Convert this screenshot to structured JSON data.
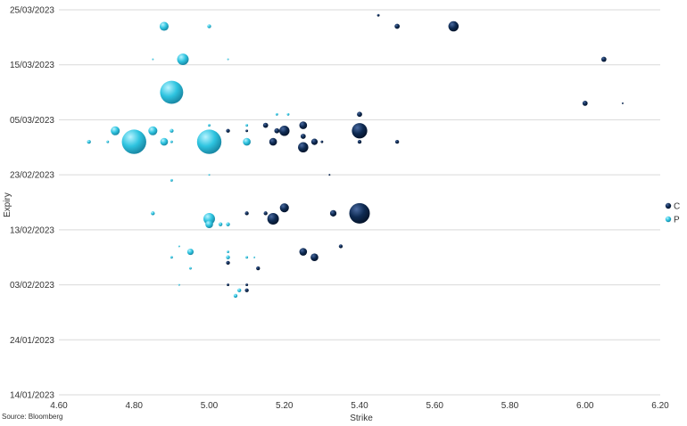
{
  "chart_data": {
    "type": "bubble",
    "xlabel": "Strike",
    "ylabel": "Expiry",
    "xlim": [
      4.6,
      6.2
    ],
    "x_ticks": [
      "4.60",
      "4.80",
      "5.00",
      "5.20",
      "5.40",
      "5.60",
      "5.80",
      "6.00",
      "6.20"
    ],
    "y_ticks": [
      "14/01/2023",
      "24/01/2023",
      "03/02/2023",
      "13/02/2023",
      "23/02/2023",
      "05/03/2023",
      "15/03/2023",
      "25/03/2023"
    ],
    "y_tick_dates": [
      "2023-01-14",
      "2023-01-24",
      "2023-02-03",
      "2023-02-13",
      "2023-02-23",
      "2023-03-05",
      "2023-03-15",
      "2023-03-25"
    ],
    "grid": "horizontal",
    "legend_position": "right",
    "colors": {
      "C": "#0e2a52",
      "P": "#2ec4e0"
    },
    "series": [
      {
        "name": "C",
        "color": "#0e2a52",
        "points": [
          {
            "x": 5.45,
            "y": "2023-03-24",
            "size": 2
          },
          {
            "x": 5.5,
            "y": "2023-03-22",
            "size": 4
          },
          {
            "x": 5.65,
            "y": "2023-03-22",
            "size": 8
          },
          {
            "x": 6.05,
            "y": "2023-03-16",
            "size": 4
          },
          {
            "x": 6.0,
            "y": "2023-03-08",
            "size": 4
          },
          {
            "x": 6.1,
            "y": "2023-03-08",
            "size": 1
          },
          {
            "x": 5.4,
            "y": "2023-03-06",
            "size": 4
          },
          {
            "x": 5.25,
            "y": "2023-03-04",
            "size": 6
          },
          {
            "x": 5.15,
            "y": "2023-03-04",
            "size": 4
          },
          {
            "x": 5.2,
            "y": "2023-03-03",
            "size": 8
          },
          {
            "x": 5.18,
            "y": "2023-03-03",
            "size": 4
          },
          {
            "x": 5.4,
            "y": "2023-03-03",
            "size": 12
          },
          {
            "x": 5.05,
            "y": "2023-03-03",
            "size": 3
          },
          {
            "x": 5.1,
            "y": "2023-03-03",
            "size": 2
          },
          {
            "x": 5.25,
            "y": "2023-03-02",
            "size": 4
          },
          {
            "x": 5.17,
            "y": "2023-03-01",
            "size": 6
          },
          {
            "x": 5.28,
            "y": "2023-03-01",
            "size": 5
          },
          {
            "x": 5.3,
            "y": "2023-03-01",
            "size": 2
          },
          {
            "x": 5.4,
            "y": "2023-03-01",
            "size": 3
          },
          {
            "x": 5.5,
            "y": "2023-03-01",
            "size": 3
          },
          {
            "x": 5.25,
            "y": "2023-02-28",
            "size": 8
          },
          {
            "x": 5.32,
            "y": "2023-02-23",
            "size": 1
          },
          {
            "x": 5.2,
            "y": "2023-02-17",
            "size": 7
          },
          {
            "x": 5.4,
            "y": "2023-02-16",
            "size": 16
          },
          {
            "x": 5.1,
            "y": "2023-02-16",
            "size": 3
          },
          {
            "x": 5.15,
            "y": "2023-02-16",
            "size": 3
          },
          {
            "x": 5.33,
            "y": "2023-02-16",
            "size": 5
          },
          {
            "x": 5.17,
            "y": "2023-02-15",
            "size": 9
          },
          {
            "x": 5.35,
            "y": "2023-02-10",
            "size": 3
          },
          {
            "x": 5.25,
            "y": "2023-02-09",
            "size": 6
          },
          {
            "x": 5.28,
            "y": "2023-02-08",
            "size": 6
          },
          {
            "x": 5.05,
            "y": "2023-02-07",
            "size": 3
          },
          {
            "x": 5.13,
            "y": "2023-02-06",
            "size": 3
          },
          {
            "x": 5.05,
            "y": "2023-02-03",
            "size": 2
          },
          {
            "x": 5.1,
            "y": "2023-02-03",
            "size": 2
          },
          {
            "x": 5.1,
            "y": "2023-02-02",
            "size": 3
          }
        ]
      },
      {
        "name": "P",
        "color": "#2ec4e0",
        "points": [
          {
            "x": 4.88,
            "y": "2023-03-22",
            "size": 7
          },
          {
            "x": 5.0,
            "y": "2023-03-22",
            "size": 3
          },
          {
            "x": 4.93,
            "y": "2023-03-16",
            "size": 9
          },
          {
            "x": 4.85,
            "y": "2023-03-16",
            "size": 1
          },
          {
            "x": 5.05,
            "y": "2023-03-16",
            "size": 1
          },
          {
            "x": 4.9,
            "y": "2023-03-10",
            "size": 18
          },
          {
            "x": 5.18,
            "y": "2023-03-06",
            "size": 2
          },
          {
            "x": 5.21,
            "y": "2023-03-06",
            "size": 2
          },
          {
            "x": 4.75,
            "y": "2023-03-03",
            "size": 7
          },
          {
            "x": 4.85,
            "y": "2023-03-03",
            "size": 7
          },
          {
            "x": 4.9,
            "y": "2023-03-03",
            "size": 3
          },
          {
            "x": 5.0,
            "y": "2023-03-04",
            "size": 2
          },
          {
            "x": 5.1,
            "y": "2023-03-04",
            "size": 2
          },
          {
            "x": 4.8,
            "y": "2023-03-01",
            "size": 19
          },
          {
            "x": 5.0,
            "y": "2023-03-01",
            "size": 19
          },
          {
            "x": 4.88,
            "y": "2023-03-01",
            "size": 6
          },
          {
            "x": 4.68,
            "y": "2023-03-01",
            "size": 3
          },
          {
            "x": 4.73,
            "y": "2023-03-01",
            "size": 2
          },
          {
            "x": 4.9,
            "y": "2023-03-01",
            "size": 2
          },
          {
            "x": 5.1,
            "y": "2023-03-01",
            "size": 6
          },
          {
            "x": 4.9,
            "y": "2023-02-22",
            "size": 2
          },
          {
            "x": 5.0,
            "y": "2023-02-23",
            "size": 1
          },
          {
            "x": 4.85,
            "y": "2023-02-16",
            "size": 3
          },
          {
            "x": 5.0,
            "y": "2023-02-15",
            "size": 9
          },
          {
            "x": 5.0,
            "y": "2023-02-14",
            "size": 6
          },
          {
            "x": 5.03,
            "y": "2023-02-14",
            "size": 3
          },
          {
            "x": 5.05,
            "y": "2023-02-14",
            "size": 3
          },
          {
            "x": 4.95,
            "y": "2023-02-09",
            "size": 5
          },
          {
            "x": 4.92,
            "y": "2023-02-10",
            "size": 1
          },
          {
            "x": 4.9,
            "y": "2023-02-08",
            "size": 2
          },
          {
            "x": 5.05,
            "y": "2023-02-09",
            "size": 2
          },
          {
            "x": 5.05,
            "y": "2023-02-08",
            "size": 3
          },
          {
            "x": 5.1,
            "y": "2023-02-08",
            "size": 2
          },
          {
            "x": 5.12,
            "y": "2023-02-08",
            "size": 1
          },
          {
            "x": 4.95,
            "y": "2023-02-06",
            "size": 2
          },
          {
            "x": 4.92,
            "y": "2023-02-03",
            "size": 1
          },
          {
            "x": 5.08,
            "y": "2023-02-02",
            "size": 3
          },
          {
            "x": 5.07,
            "y": "2023-02-01",
            "size": 3
          }
        ]
      }
    ]
  },
  "source_text": "Source: Bloomberg"
}
